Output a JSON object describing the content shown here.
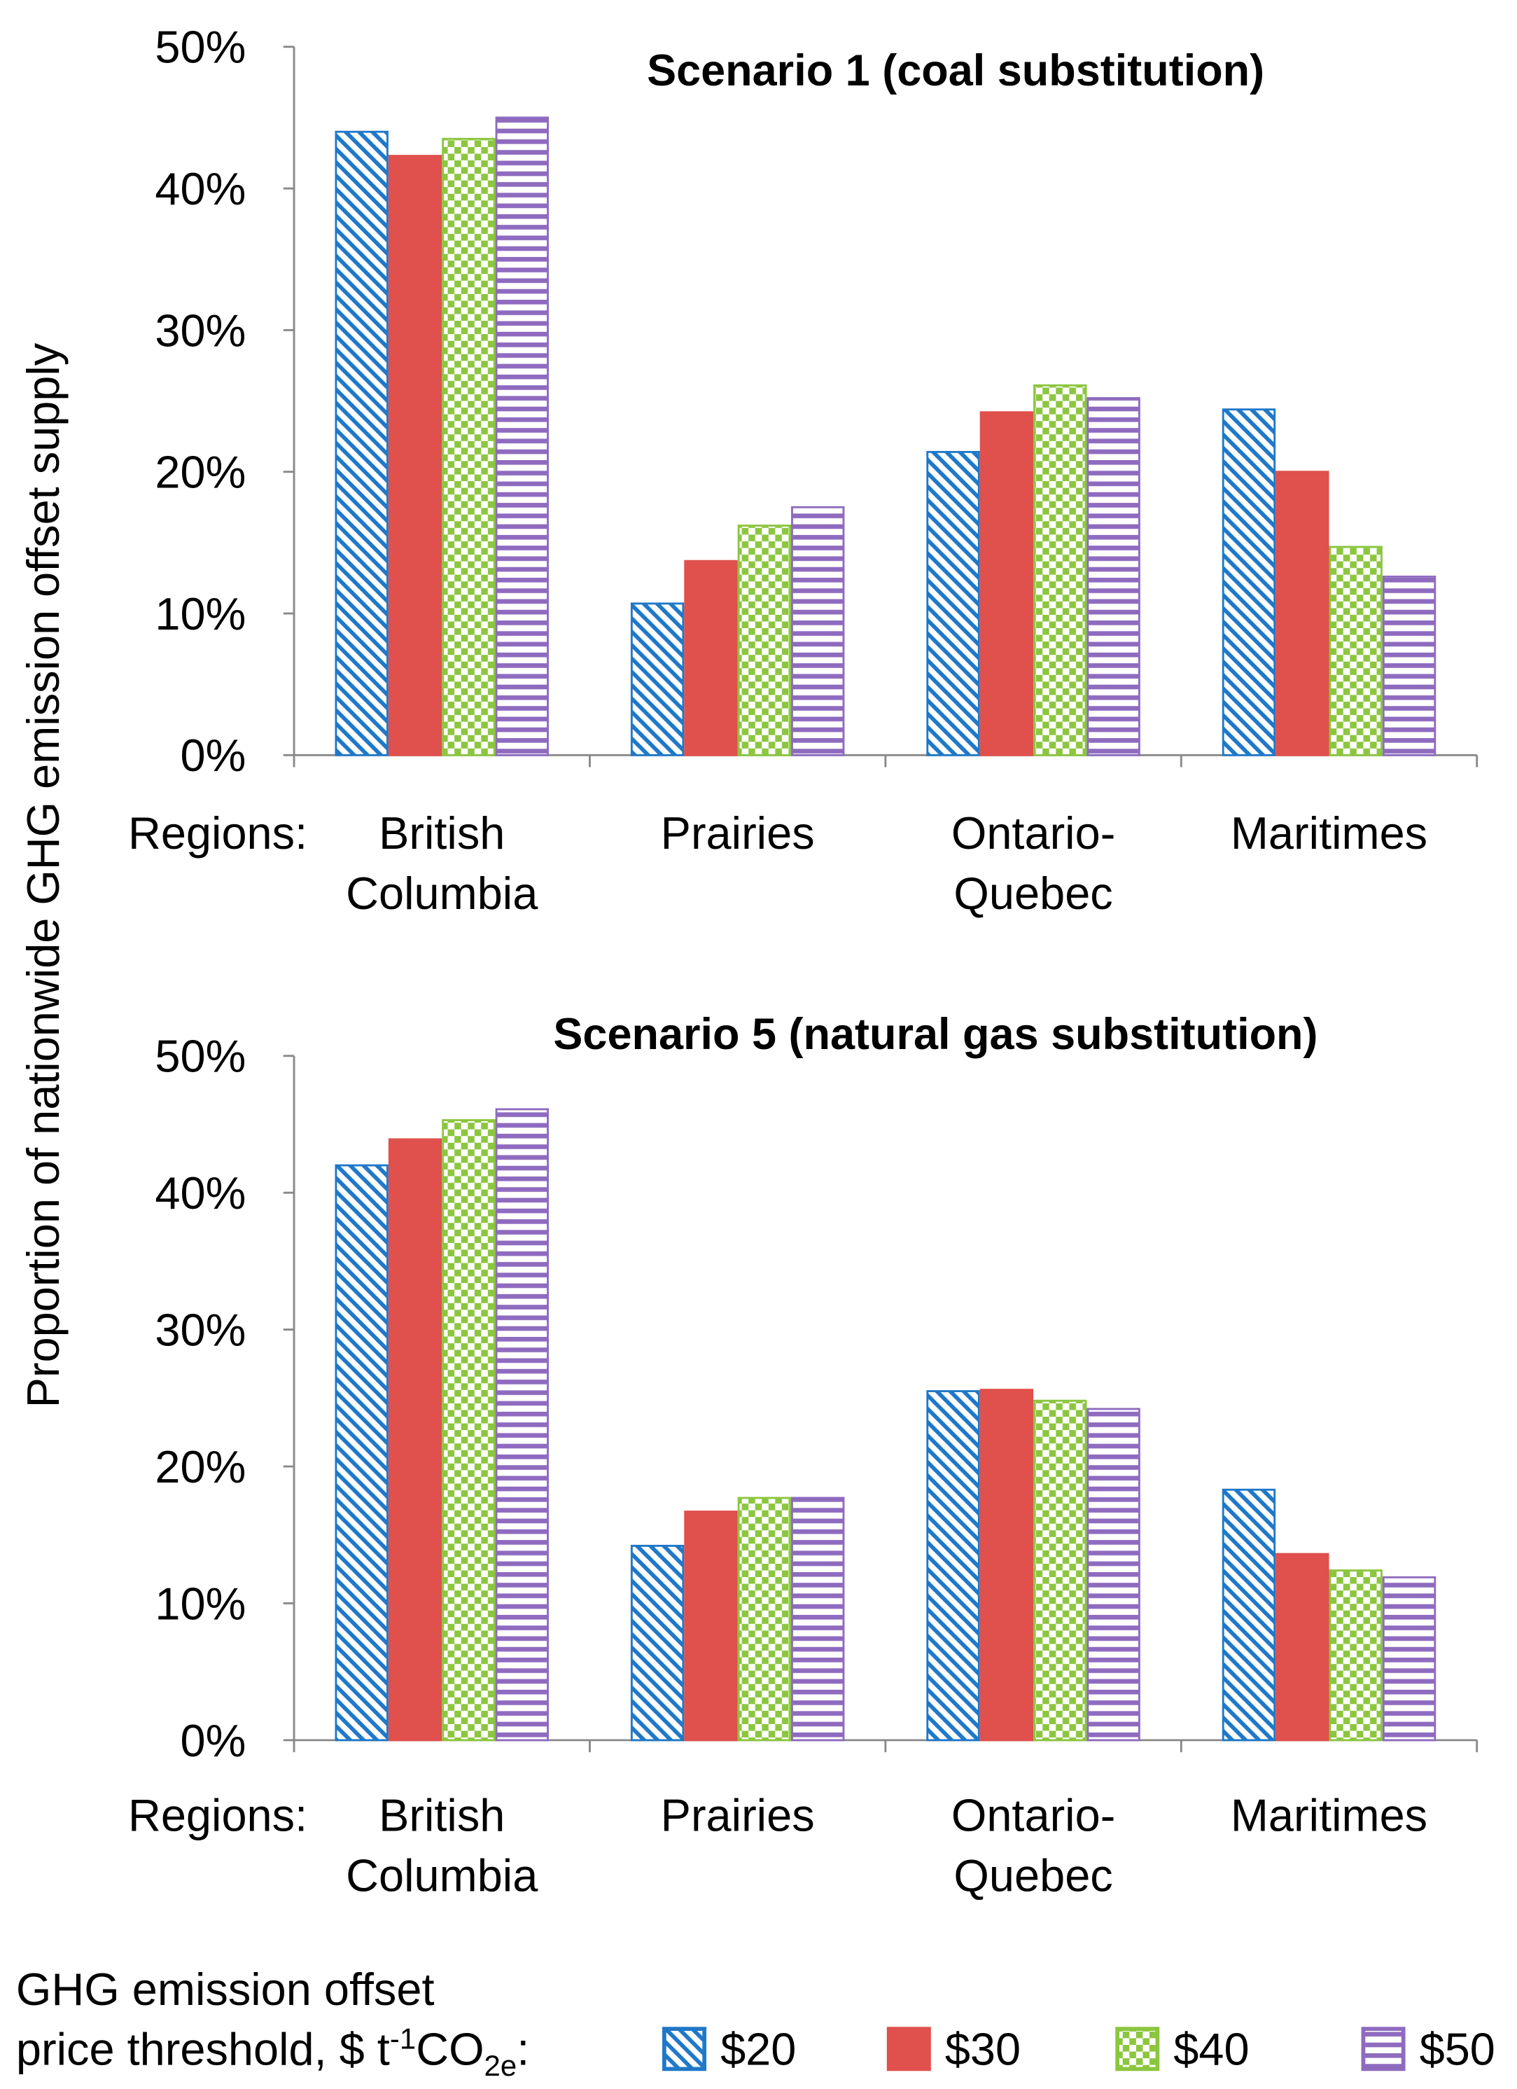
{
  "y_label": "Proportion of nationwide GHG emission offset supply",
  "x_label": "Regions:",
  "legend": {
    "title": [
      "GHG emission offset",
      "price threshold, $ t",
      "-1",
      "CO",
      "2e",
      ":"
    ],
    "items": [
      {
        "name": "$20",
        "color": "#1f78c8",
        "pattern": "diagonal"
      },
      {
        "name": "$30",
        "color": "#e0504c",
        "pattern": "solid"
      },
      {
        "name": "$40",
        "color": "#8cc63f",
        "pattern": "checker"
      },
      {
        "name": "$50",
        "color": "#8e6bbf",
        "pattern": "horizontal"
      }
    ]
  },
  "chart_data": [
    {
      "type": "bar",
      "title": "Scenario 1 (coal substitution)",
      "categories": [
        [
          "British",
          "Columbia"
        ],
        [
          "Prairies"
        ],
        [
          "Ontario-",
          "Quebec"
        ],
        [
          "Maritimes"
        ]
      ],
      "series": [
        {
          "values": [
            44,
            10.7,
            21.4,
            24.4
          ]
        },
        {
          "values": [
            42.3,
            13.7,
            24.2,
            20
          ]
        },
        {
          "values": [
            43.5,
            16.2,
            26.1,
            14.7
          ]
        },
        {
          "values": [
            45,
            17.5,
            25.2,
            12.6
          ]
        }
      ],
      "ylim": [
        0,
        50
      ],
      "yticks": [
        {
          "value": 0,
          "label": "0%"
        },
        {
          "value": 10,
          "label": "10%"
        },
        {
          "value": 20,
          "label": "20%"
        },
        {
          "value": 30,
          "label": "30%"
        },
        {
          "value": 40,
          "label": "40%"
        },
        {
          "value": 50,
          "label": "50%"
        }
      ]
    },
    {
      "type": "bar",
      "title": "Scenario 5 (natural gas substitution)",
      "categories": [
        [
          "British",
          "Columbia"
        ],
        [
          "Prairies"
        ],
        [
          "Ontario-",
          "Quebec"
        ],
        [
          "Maritimes"
        ]
      ],
      "series": [
        {
          "values": [
            42,
            14.2,
            25.5,
            18.3
          ]
        },
        {
          "values": [
            43.9,
            16.7,
            25.6,
            13.6
          ]
        },
        {
          "values": [
            45.3,
            17.7,
            24.8,
            12.4
          ]
        },
        {
          "values": [
            46.1,
            17.7,
            24.2,
            11.9
          ]
        }
      ],
      "ylim": [
        0,
        50
      ],
      "yticks": [
        {
          "value": 0,
          "label": "0%"
        },
        {
          "value": 10,
          "label": "10%"
        },
        {
          "value": 20,
          "label": "20%"
        },
        {
          "value": 30,
          "label": "30%"
        },
        {
          "value": 40,
          "label": "40%"
        },
        {
          "value": 50,
          "label": "50%"
        }
      ]
    }
  ]
}
